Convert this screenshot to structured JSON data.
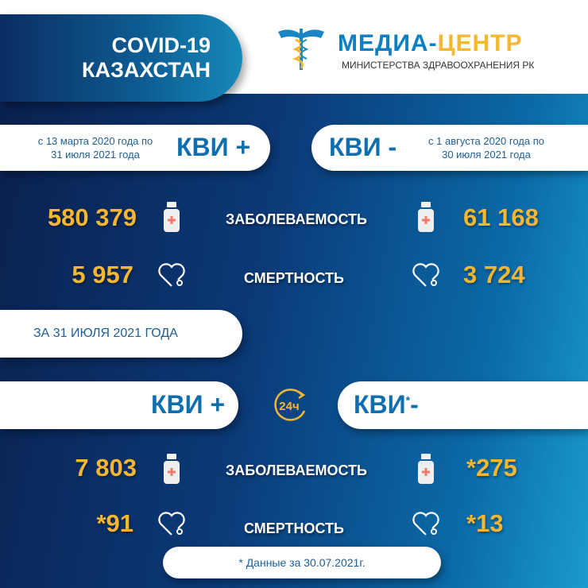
{
  "header": {
    "title_line1": "COVID-19",
    "title_line2": "КАЗАХСТАН",
    "logo_main": "МЕДИА-",
    "logo_accent": "ЦЕНТР",
    "logo_sub": "МИНИСТЕРСТВА ЗДРАВООХРАНЕНИЯ РК"
  },
  "cumulative": {
    "positive": {
      "label": "КВИ +",
      "period_line1": "с 13 марта 2020 года по",
      "period_line2": "31 июля 2021 года",
      "cases": "580 379",
      "deaths": "5 957"
    },
    "negative": {
      "label": "КВИ -",
      "period_line1": "с 1 августа 2020 года по",
      "period_line2": "30 июля 2021 года",
      "cases": "61 168",
      "deaths": "3 724"
    }
  },
  "labels": {
    "incidence": "ЗАБОЛЕВАЕМОСТЬ",
    "mortality": "СМЕРТНОСТЬ"
  },
  "daily": {
    "date_label": "ЗА 31 ИЮЛЯ 2021 ГОДА",
    "badge": "24ч",
    "positive": {
      "label": "КВИ +",
      "cases": "7 803",
      "deaths": "*91"
    },
    "negative": {
      "label": "КВИ",
      "asterisk": "*",
      "suffix": "-",
      "cases": "*275",
      "deaths": "*13"
    }
  },
  "footnote": "* Данные за 30.07.2021г.",
  "colors": {
    "accent": "#f5b731",
    "brand_blue": "#0f6fae"
  }
}
